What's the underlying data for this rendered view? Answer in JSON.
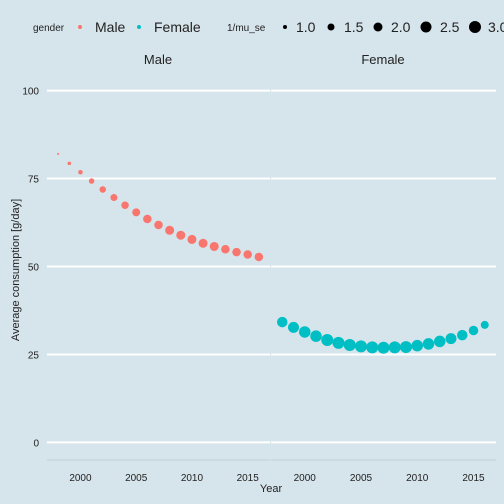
{
  "chart_data": {
    "type": "scatter",
    "xlabel": "Year",
    "ylabel": "Average consumption [g/day]",
    "xlim": [
      1997,
      2017
    ],
    "ylim": [
      -5,
      105
    ],
    "x_ticks": [
      2000,
      2005,
      2010,
      2015
    ],
    "y_ticks": [
      0,
      25,
      50,
      75,
      100
    ],
    "grid": "horizontal major lines",
    "legend_position": "top",
    "legend": {
      "color_title": "gender",
      "color_entries": [
        {
          "label": "Male",
          "color": "#f8766d"
        },
        {
          "label": "Female",
          "color": "#00bfc4"
        }
      ],
      "size_title": "1/mu_se",
      "size_entries": [
        "1.0",
        "1.5",
        "2.0",
        "2.5",
        "3.0"
      ]
    },
    "facets": [
      "Male",
      "Female"
    ],
    "series": [
      {
        "name": "Male",
        "facet": "Male",
        "color": "#f8766d",
        "x": [
          1998,
          1999,
          2000,
          2001,
          2002,
          2003,
          2004,
          2005,
          2006,
          2007,
          2008,
          2009,
          2010,
          2011,
          2012,
          2013,
          2014,
          2015,
          2016
        ],
        "y": [
          82,
          79.3,
          76.8,
          74.3,
          71.9,
          69.6,
          67.4,
          65.4,
          63.5,
          61.8,
          60.3,
          58.9,
          57.7,
          56.6,
          55.7,
          54.9,
          54.1,
          53.4,
          52.7
        ],
        "size": [
          1.0,
          1.3,
          1.5,
          1.7,
          1.9,
          2.0,
          2.1,
          2.2,
          2.3,
          2.3,
          2.4,
          2.4,
          2.4,
          2.4,
          2.4,
          2.3,
          2.3,
          2.3,
          2.3
        ]
      },
      {
        "name": "Female",
        "facet": "Female",
        "color": "#00bfc4",
        "x": [
          1998,
          1999,
          2000,
          2001,
          2002,
          2003,
          2004,
          2005,
          2006,
          2007,
          2008,
          2009,
          2010,
          2011,
          2012,
          2013,
          2014,
          2015,
          2016
        ],
        "y": [
          34.2,
          32.7,
          31.4,
          30.2,
          29.1,
          28.3,
          27.7,
          27.3,
          27.0,
          26.9,
          27.0,
          27.1,
          27.5,
          28.0,
          28.7,
          29.5,
          30.5,
          31.8,
          33.4
        ],
        "size": [
          2.7,
          2.8,
          2.9,
          2.9,
          3.0,
          3.0,
          3.0,
          3.0,
          3.0,
          3.0,
          3.0,
          3.0,
          2.9,
          2.9,
          2.9,
          2.8,
          2.7,
          2.5,
          2.2
        ]
      }
    ]
  }
}
